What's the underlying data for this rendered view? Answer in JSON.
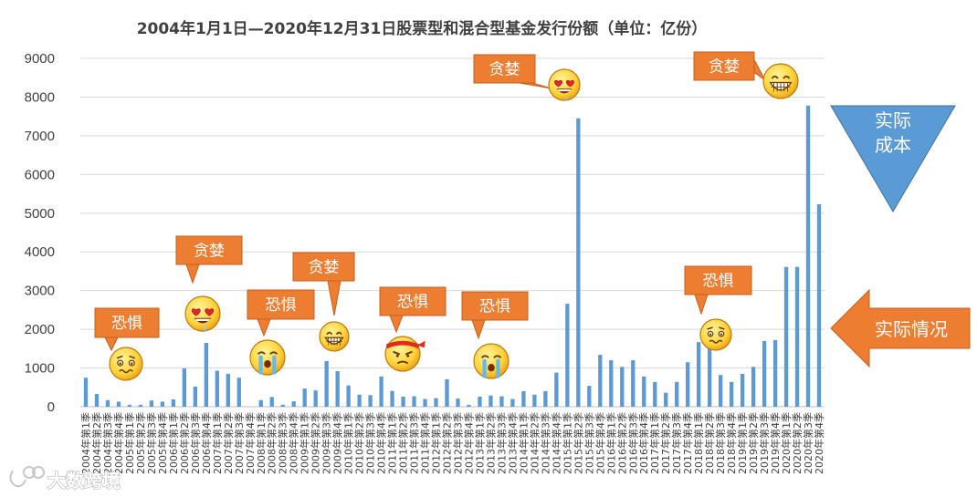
{
  "chart_data": {
    "type": "bar",
    "title": "2004年1月1日—2020年12月31日股票型和混合型基金发行份额（单位：亿份）",
    "ylim": [
      0,
      9000
    ],
    "yticks": [
      0,
      1000,
      2000,
      3000,
      4000,
      5000,
      6000,
      7000,
      8000,
      9000
    ],
    "grid": true,
    "color": "#5b9bd5",
    "categories": [
      "2004年第1季",
      "2004年第2季",
      "2004年第3季",
      "2004年第4季",
      "2005年第1季",
      "2005年第2季",
      "2005年第3季",
      "2005年第4季",
      "2006年第1季",
      "2006年第2季",
      "2006年第3季",
      "2006年第4季",
      "2007年第1季",
      "2007年第2季",
      "2007年第3季",
      "2007年第4季",
      "2008年第1季",
      "2008年第2季",
      "2008年第3季",
      "2008年第4季",
      "2009年第1季",
      "2009年第2季",
      "2009年第3季",
      "2009年第4季",
      "2010年第1季",
      "2010年第2季",
      "2010年第3季",
      "2010年第4季",
      "2011年第1季",
      "2011年第2季",
      "2011年第3季",
      "2011年第4季",
      "2012年第1季",
      "2012年第2季",
      "2012年第3季",
      "2012年第4季",
      "2013年第1季",
      "2013年第2季",
      "2013年第3季",
      "2013年第4季",
      "2014年第1季",
      "2014年第2季",
      "2014年第3季",
      "2014年第4季",
      "2015年第1季",
      "2015年第2季",
      "2015年第3季",
      "2015年第4季",
      "2016年第1季",
      "2016年第2季",
      "2016年第3季",
      "2016年第4季",
      "2017年第1季",
      "2017年第2季",
      "2017年第3季",
      "2017年第4季",
      "2018年第1季",
      "2018年第2季",
      "2018年第3季",
      "2018年第4季",
      "2019年第1季",
      "2019年第2季",
      "2019年第3季",
      "2019年第4季",
      "2020年第1季",
      "2020年第2季",
      "2020年第3季",
      "2020年第4季"
    ],
    "values": [
      750,
      330,
      170,
      130,
      50,
      50,
      160,
      130,
      190,
      990,
      520,
      1650,
      930,
      850,
      750,
      0,
      170,
      250,
      50,
      140,
      470,
      420,
      1180,
      920,
      550,
      310,
      300,
      780,
      410,
      260,
      270,
      200,
      220,
      710,
      210,
      50,
      260,
      290,
      270,
      200,
      400,
      310,
      400,
      880,
      2660,
      7450,
      540,
      1340,
      1200,
      1030,
      1200,
      780,
      640,
      360,
      640,
      1150,
      1670,
      1590,
      820,
      640,
      850,
      1030,
      1700,
      1720,
      3610,
      3610,
      7780,
      5230
    ]
  },
  "annotations": [
    {
      "label": "恐惧",
      "emoji": "anxious-emoji"
    },
    {
      "label": "贪婪",
      "emoji": "heart-eyes-emoji"
    },
    {
      "label": "恐惧",
      "emoji": "crying-emoji"
    },
    {
      "label": "贪婪",
      "emoji": "grinning-emoji"
    },
    {
      "label": "恐惧",
      "emoji": "angry-emoji"
    },
    {
      "label": "恐惧",
      "emoji": "crying-emoji"
    },
    {
      "label": "贪婪",
      "emoji": "heart-eyes-emoji"
    },
    {
      "label": "恐惧",
      "emoji": "anxious-emoji"
    },
    {
      "label": "贪婪",
      "emoji": "grinning-emoji"
    }
  ],
  "side": {
    "triangle_label": "实际成本",
    "triangle_color": "#5b9bd5",
    "arrow_label": "实际情况",
    "arrow_color": "#ed7d31"
  },
  "callout_color": "#ed7d31",
  "watermark": "大数跨境"
}
